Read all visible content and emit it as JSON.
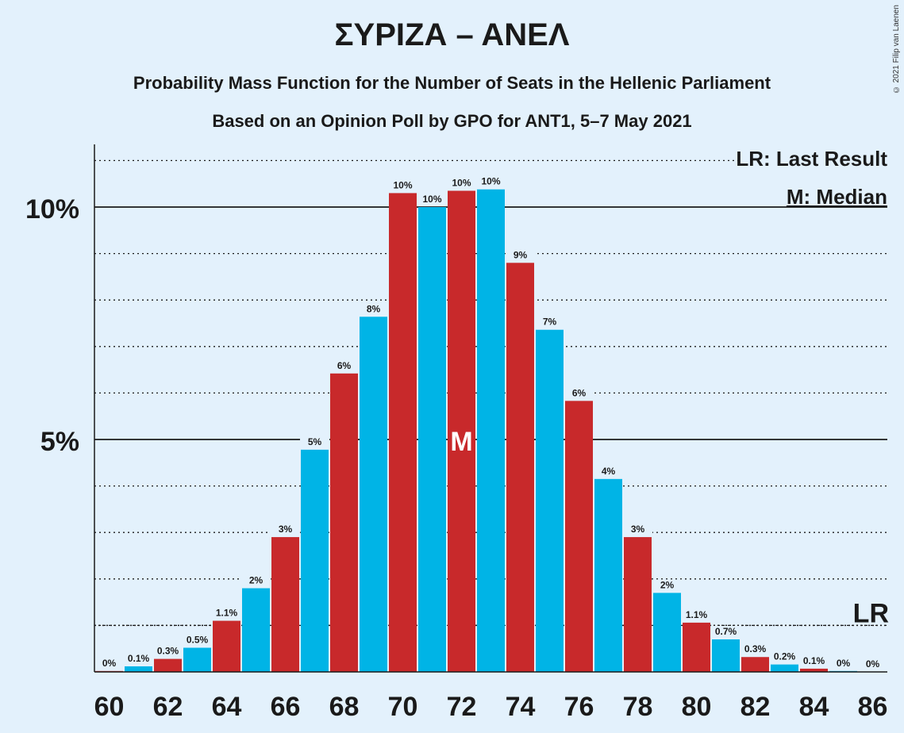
{
  "chart_data": {
    "type": "bar",
    "title": "ΣΥΡΙΖΑ – ΑΝΕΛ",
    "subtitle1": "Probability Mass Function for the Number of Seats in the Hellenic Parliament",
    "subtitle2": "Based on an Opinion Poll by GPO for ANT1, 5–7 May 2021",
    "copyright": "© 2021 Filip van Laenen",
    "legend_lr": "LR: Last Result",
    "legend_median": "M: Median",
    "lr_label": "LR",
    "median_label": "M",
    "median_seat": 72,
    "last_result_prob": 1.0,
    "x": [
      60,
      61,
      62,
      63,
      64,
      65,
      66,
      67,
      68,
      69,
      70,
      71,
      72,
      73,
      74,
      75,
      76,
      77,
      78,
      79,
      80,
      81,
      82,
      83,
      84,
      85,
      86
    ],
    "values": [
      0.02,
      0.12,
      0.28,
      0.52,
      1.1,
      1.8,
      2.9,
      4.78,
      6.42,
      7.64,
      10.3,
      10.0,
      10.35,
      10.38,
      8.8,
      7.36,
      5.83,
      4.15,
      2.9,
      1.7,
      1.06,
      0.7,
      0.32,
      0.16,
      0.07,
      0.02,
      0.0
    ],
    "value_labels": [
      "0%",
      "0.1%",
      "0.3%",
      "0.5%",
      "1.1%",
      "2%",
      "3%",
      "5%",
      "6%",
      "8%",
      "10%",
      "10%",
      "10%",
      "10%",
      "9%",
      "7%",
      "6%",
      "4%",
      "3%",
      "2%",
      "1.1%",
      "0.7%",
      "0.3%",
      "0.2%",
      "0.1%",
      "0%",
      "0%"
    ],
    "x_tick_labels": [
      "60",
      "62",
      "64",
      "66",
      "68",
      "70",
      "72",
      "74",
      "76",
      "78",
      "80",
      "82",
      "84",
      "86"
    ],
    "y_tick_labels": [
      "5%",
      "10%"
    ],
    "y_ticks": [
      5,
      10
    ],
    "ylim": [
      0,
      11.35
    ],
    "colors": {
      "even": "#c8292b",
      "odd": "#00b4e6",
      "axis": "#1a1a1a",
      "background": "#e3f1fc"
    }
  }
}
